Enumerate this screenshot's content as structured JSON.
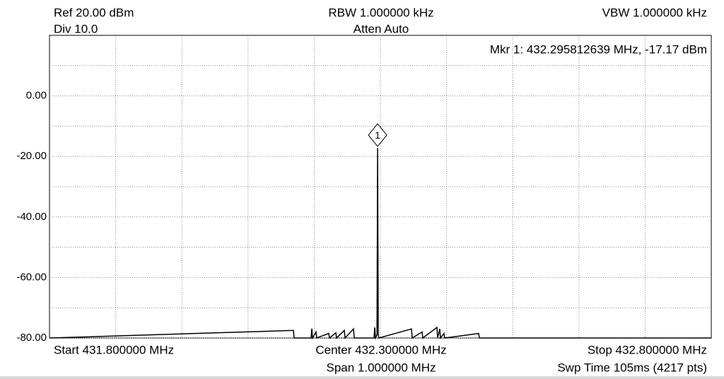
{
  "chart_data": {
    "type": "line",
    "header": {
      "ref": "Ref 20.00 dBm",
      "div": "Div 10.0",
      "rbw": "RBW 1.000000 kHz",
      "atten": "Atten Auto",
      "vbw": "VBW 1.000000 kHz"
    },
    "marker_readout": "Mkr 1: 432.295812639 MHz, -17.17 dBm",
    "footer": {
      "start": "Start 431.800000 MHz",
      "center": "Center 432.300000 MHz",
      "stop": "Stop 432.800000 MHz",
      "span": "Span 1.000000 MHz",
      "sweep": "Swp Time 105ms (4217 pts)"
    },
    "marker": {
      "label": "1",
      "x": 432.2958,
      "value": -17.17
    },
    "xlim": [
      431.8,
      432.8
    ],
    "xticks": [
      431.9,
      432.0,
      432.1,
      432.2,
      432.3,
      432.4,
      432.5,
      432.6,
      432.7
    ],
    "ylim": [
      -80,
      20
    ],
    "yticks": [
      {
        "value": 0,
        "label": "0.00"
      },
      {
        "value": -20,
        "label": "-20.00"
      },
      {
        "value": -40,
        "label": "-40.00"
      },
      {
        "value": -60,
        "label": "-60.00"
      },
      {
        "value": -80,
        "label": "-80.00"
      }
    ],
    "minor_yticks": [
      10,
      -10,
      -30,
      -50,
      -70
    ],
    "grid": true,
    "color": "#000000",
    "x": [
      431.8,
      432.1686,
      432.1697,
      432.1953,
      432.1964,
      432.1974,
      432.2028,
      432.2038,
      432.222,
      432.2231,
      432.2327,
      432.2338,
      432.2455,
      432.2466,
      432.2594,
      432.2605,
      432.2904,
      432.2915,
      432.2926,
      432.2949,
      432.2958,
      432.2968,
      432.2979,
      432.347,
      432.3481,
      432.363,
      432.3641,
      432.3855,
      432.3865,
      432.3897,
      432.3908,
      432.3962,
      432.3972,
      432.4485,
      432.4496,
      432.8
    ],
    "values": [
      -80,
      -77.5,
      -80,
      -80,
      -76.9,
      -80,
      -78,
      -80,
      -78.5,
      -80,
      -78.3,
      -80,
      -77.5,
      -80,
      -77,
      -80,
      -80,
      -76.5,
      -80,
      -79,
      -17.17,
      -79,
      -80,
      -77,
      -80,
      -78,
      -80,
      -76.5,
      -80,
      -77,
      -80,
      -78.5,
      -80,
      -78.5,
      -80,
      -80
    ]
  }
}
